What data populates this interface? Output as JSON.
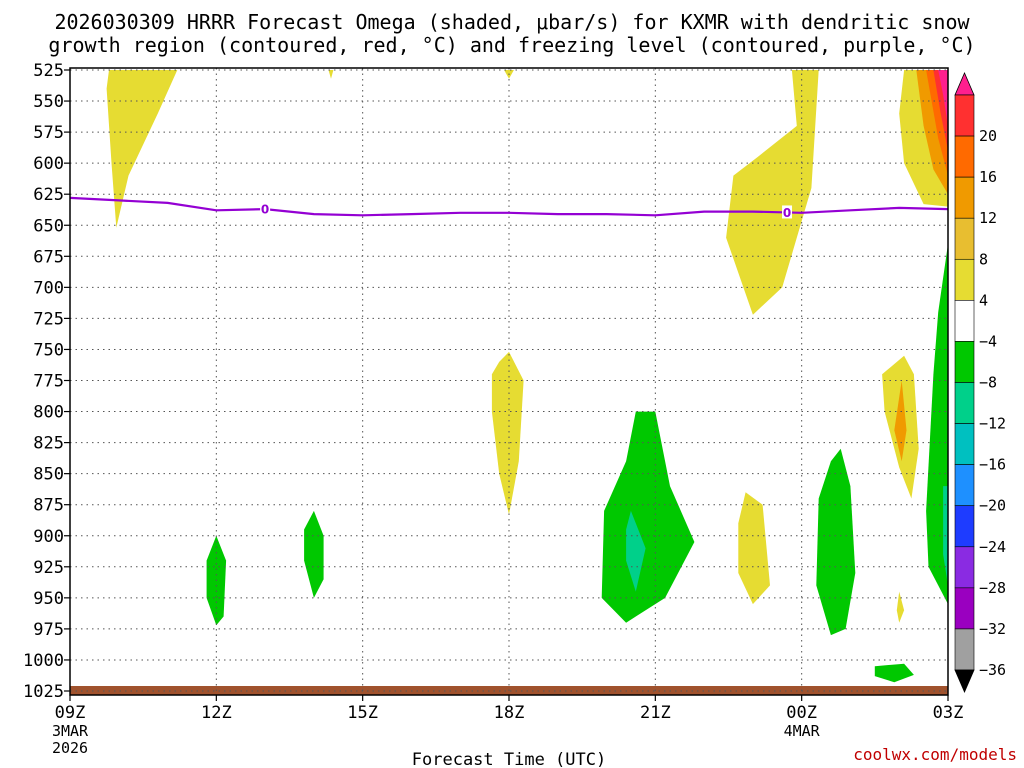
{
  "chart_data": {
    "type": "heatmap",
    "title_line1": "2026030309 HRRR Forecast Omega (shaded, μbar/s) for KXMR with dendritic snow",
    "title_line2": "growth region (contoured, red, °C) and freezing level (contoured, purple, °C)",
    "xlabel": "Forecast Time (UTC)",
    "watermark": "coolwx.com/models",
    "x_range_hours": [
      0,
      18
    ],
    "x_ticks": [
      {
        "h": 0,
        "label": "09Z",
        "sub1": "3MAR",
        "sub2": "2026"
      },
      {
        "h": 3,
        "label": "12Z"
      },
      {
        "h": 6,
        "label": "15Z"
      },
      {
        "h": 9,
        "label": "18Z"
      },
      {
        "h": 12,
        "label": "21Z"
      },
      {
        "h": 15,
        "label": "00Z",
        "sub1": "4MAR"
      },
      {
        "h": 18,
        "label": "03Z"
      }
    ],
    "y_ticks": [
      525,
      550,
      575,
      600,
      625,
      650,
      675,
      700,
      725,
      750,
      775,
      800,
      825,
      850,
      875,
      900,
      925,
      950,
      975,
      1000,
      1025
    ],
    "y_range_hpa": [
      525,
      1035
    ],
    "colorbar": {
      "labels": [
        "20",
        "16",
        "12",
        "8",
        "4",
        "−4",
        "−8",
        "−12",
        "−16",
        "−20",
        "−24",
        "−28",
        "−32",
        "−36"
      ],
      "colors": [
        "#ff1f8e",
        "#ff3030",
        "#ff6a00",
        "#f09a00",
        "#e8be30",
        "#e6dc32",
        "#ffffff",
        "#00c800",
        "#00d08a",
        "#00c0c0",
        "#1e90ff",
        "#1e3cff",
        "#8a2be2",
        "#9a00c0",
        "#a0a0a0",
        "#000000"
      ]
    },
    "series": [
      {
        "name": "Freezing level (0°C)",
        "label": "0",
        "color": "#9400d3",
        "x": [
          0,
          1,
          2,
          3,
          4,
          5,
          6,
          7,
          8,
          9,
          10,
          11,
          12,
          13,
          14,
          15,
          16,
          17,
          18
        ],
        "y": [
          628,
          630,
          632,
          638,
          637,
          641,
          642,
          641,
          640,
          640,
          641,
          641,
          642,
          639,
          639,
          640,
          638,
          636,
          637
        ]
      }
    ],
    "shaded_regions": [
      {
        "name": "omega 4-8",
        "color": "#e6dc32",
        "points": [
          [
            0.8,
            525
          ],
          [
            2.2,
            525
          ],
          [
            1.8,
            560
          ],
          [
            1.2,
            610
          ],
          [
            0.95,
            652
          ],
          [
            0.85,
            600
          ],
          [
            0.75,
            540
          ]
        ]
      },
      {
        "name": "omega 4-8",
        "color": "#e6dc32",
        "points": [
          [
            5.3,
            525
          ],
          [
            5.4,
            525
          ],
          [
            5.35,
            532
          ]
        ]
      },
      {
        "name": "omega 4-8",
        "color": "#e6dc32",
        "points": [
          [
            8.9,
            525
          ],
          [
            9.1,
            525
          ],
          [
            9.0,
            532
          ]
        ]
      },
      {
        "name": "omega 4-8",
        "color": "#e6dc32",
        "points": [
          [
            14.8,
            525
          ],
          [
            15.35,
            525
          ],
          [
            15.2,
            620
          ],
          [
            14.6,
            700
          ],
          [
            14.0,
            722
          ],
          [
            13.45,
            660
          ],
          [
            13.6,
            610
          ],
          [
            14.1,
            595
          ],
          [
            14.9,
            570
          ]
        ]
      },
      {
        "name": "omega 4-8",
        "color": "#e6dc32",
        "points": [
          [
            17.1,
            525
          ],
          [
            18.0,
            525
          ],
          [
            18.0,
            635
          ],
          [
            17.5,
            633
          ],
          [
            17.1,
            600
          ],
          [
            17.0,
            560
          ]
        ]
      },
      {
        "name": "omega 8-12",
        "color": "#f09a00",
        "points": [
          [
            17.35,
            525
          ],
          [
            18.0,
            525
          ],
          [
            18.0,
            625
          ],
          [
            17.7,
            605
          ],
          [
            17.5,
            570
          ]
        ]
      },
      {
        "name": "omega 12-16",
        "color": "#ff6a00",
        "points": [
          [
            17.55,
            525
          ],
          [
            18.0,
            525
          ],
          [
            18.0,
            610
          ],
          [
            17.8,
            580
          ]
        ]
      },
      {
        "name": "omega 16-20",
        "color": "#ff3030",
        "points": [
          [
            17.7,
            525
          ],
          [
            18.0,
            525
          ],
          [
            18.0,
            590
          ],
          [
            17.85,
            560
          ]
        ]
      },
      {
        "name": "omega >20",
        "color": "#ff1f8e",
        "points": [
          [
            17.8,
            525
          ],
          [
            18.0,
            525
          ],
          [
            18.0,
            570
          ],
          [
            17.9,
            545
          ]
        ]
      },
      {
        "name": "omega 4-8",
        "color": "#e6dc32",
        "points": [
          [
            8.8,
            760
          ],
          [
            9.0,
            752
          ],
          [
            9.3,
            775
          ],
          [
            9.2,
            840
          ],
          [
            9.0,
            883
          ],
          [
            8.8,
            850
          ],
          [
            8.65,
            800
          ],
          [
            8.65,
            770
          ]
        ]
      },
      {
        "name": "omega 4-8",
        "color": "#e6dc32",
        "points": [
          [
            13.85,
            865
          ],
          [
            14.2,
            875
          ],
          [
            14.35,
            940
          ],
          [
            14.0,
            955
          ],
          [
            13.7,
            930
          ],
          [
            13.7,
            890
          ]
        ]
      },
      {
        "name": "omega 4-8",
        "color": "#e6dc32",
        "points": [
          [
            17.1,
            755
          ],
          [
            17.3,
            770
          ],
          [
            17.4,
            830
          ],
          [
            17.25,
            870
          ],
          [
            17.0,
            845
          ],
          [
            16.7,
            800
          ],
          [
            16.65,
            770
          ]
        ]
      },
      {
        "name": "omega 8-12",
        "color": "#f09a00",
        "points": [
          [
            17.05,
            775
          ],
          [
            17.15,
            815
          ],
          [
            17.05,
            840
          ],
          [
            16.9,
            815
          ]
        ]
      },
      {
        "name": "omega 4-8",
        "color": "#e6dc32",
        "points": [
          [
            17.0,
            945
          ],
          [
            17.1,
            960
          ],
          [
            17.0,
            970
          ],
          [
            16.95,
            960
          ]
        ]
      },
      {
        "name": "omega -4 to -8",
        "color": "#00c800",
        "points": [
          [
            3.0,
            900
          ],
          [
            3.2,
            920
          ],
          [
            3.15,
            965
          ],
          [
            3.0,
            972
          ],
          [
            2.8,
            950
          ],
          [
            2.8,
            920
          ]
        ]
      },
      {
        "name": "omega -4 to -8",
        "color": "#00c800",
        "points": [
          [
            5.0,
            880
          ],
          [
            5.2,
            900
          ],
          [
            5.2,
            935
          ],
          [
            5.0,
            950
          ],
          [
            4.8,
            920
          ],
          [
            4.8,
            895
          ]
        ]
      },
      {
        "name": "omega -4 to -8",
        "color": "#00c800",
        "points": [
          [
            12.0,
            800
          ],
          [
            12.3,
            860
          ],
          [
            12.8,
            905
          ],
          [
            12.2,
            950
          ],
          [
            11.4,
            970
          ],
          [
            10.9,
            950
          ],
          [
            10.95,
            880
          ],
          [
            11.4,
            840
          ],
          [
            11.6,
            800
          ]
        ]
      },
      {
        "name": "omega -8 to -12",
        "color": "#00d08a",
        "points": [
          [
            11.5,
            880
          ],
          [
            11.8,
            910
          ],
          [
            11.6,
            945
          ],
          [
            11.4,
            920
          ],
          [
            11.4,
            895
          ]
        ]
      },
      {
        "name": "omega -4 to -8",
        "color": "#00c800",
        "points": [
          [
            15.8,
            830
          ],
          [
            16.0,
            860
          ],
          [
            16.1,
            930
          ],
          [
            15.9,
            975
          ],
          [
            15.6,
            980
          ],
          [
            15.3,
            940
          ],
          [
            15.35,
            870
          ],
          [
            15.6,
            840
          ]
        ]
      },
      {
        "name": "omega -4 to -8",
        "color": "#00c800",
        "points": [
          [
            18.0,
            665
          ],
          [
            18.0,
            955
          ],
          [
            17.6,
            925
          ],
          [
            17.55,
            880
          ],
          [
            17.7,
            770
          ],
          [
            17.8,
            720
          ]
        ]
      },
      {
        "name": "omega -8 to -12",
        "color": "#00d08a",
        "points": [
          [
            17.9,
            860
          ],
          [
            18.0,
            860
          ],
          [
            18.0,
            940
          ],
          [
            17.9,
            915
          ]
        ]
      },
      {
        "name": "omega -4 to -8",
        "color": "#00c800",
        "points": [
          [
            16.5,
            1005
          ],
          [
            17.1,
            1003
          ],
          [
            17.3,
            1012
          ],
          [
            16.9,
            1018
          ],
          [
            16.5,
            1013
          ]
        ]
      }
    ]
  }
}
